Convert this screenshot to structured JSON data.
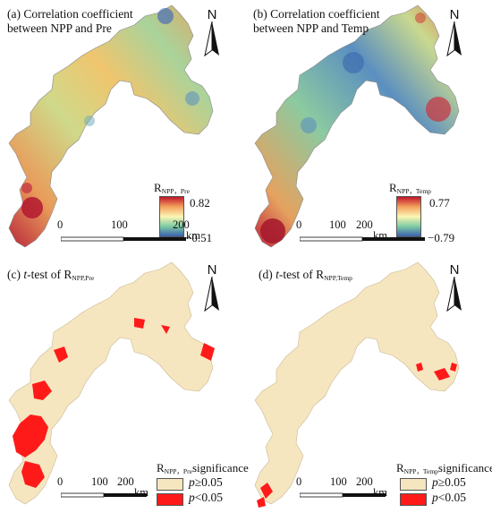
{
  "panels": {
    "a": {
      "title_line1": "(a) Correlation coefficient",
      "title_line2": "between NPP and Pre",
      "legend_main": "R",
      "legend_sub": "NPP，Pre",
      "max": "0.82",
      "min": "−0.51"
    },
    "b": {
      "title_line1": "(b) Correlation coefficient",
      "title_line2": "between NPP and Temp",
      "legend_main": "R",
      "legend_sub": "NPP，Temp",
      "max": "0.77",
      "min": "−0.79"
    },
    "c": {
      "title_pre": "(c) ",
      "title_t": "t",
      "title_mid": "-test of R",
      "title_sub": "NPP,Pre",
      "legend_main": "R",
      "legend_sub": "NPP，Pre",
      "legend_suffix": "significance"
    },
    "d": {
      "title_pre": "(d) ",
      "title_t": "t",
      "title_mid": "-test of R",
      "title_sub": "NPP,Temp",
      "legend_main": "R",
      "legend_sub": "NPP，Temp",
      "legend_suffix": "significance"
    }
  },
  "north_label": "N",
  "scale": {
    "t0": "0",
    "t1": "100",
    "t2": "200",
    "unit": "km"
  },
  "significance": {
    "p_symbol": "p",
    "not_sig": "≥0.05",
    "sig": "<0.05",
    "not_sig_color": "#f6e6c0",
    "sig_color": "#ff1a1a"
  },
  "colorramp": [
    "#d7191c",
    "#fdae61",
    "#ffffbf",
    "#a6d96a",
    "#4575b4"
  ]
}
